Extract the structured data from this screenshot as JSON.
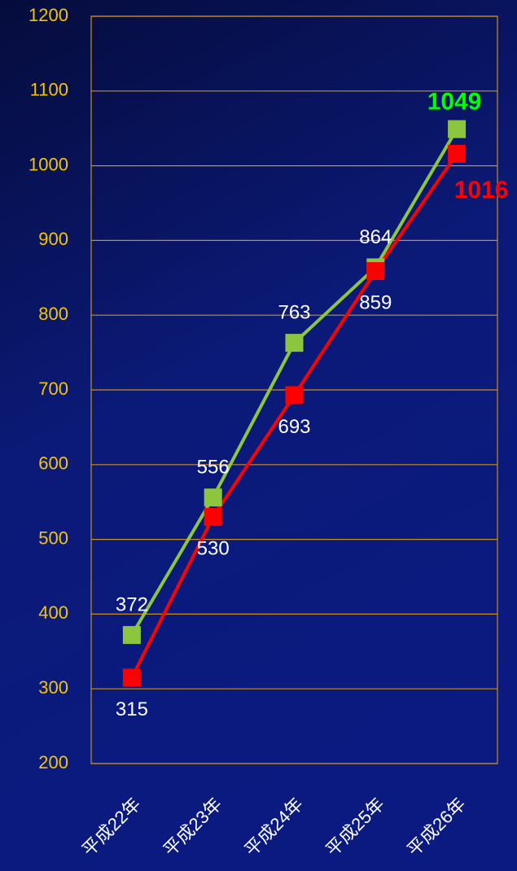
{
  "chart_data": {
    "type": "line",
    "categories": [
      "平成22年",
      "平成23年",
      "平成24年",
      "平成25年",
      "平成26年"
    ],
    "series": [
      {
        "name": null,
        "color": "#8cc63f",
        "values": [
          372,
          556,
          763,
          864,
          1049
        ]
      },
      {
        "name": null,
        "color": "#ff0000",
        "values": [
          315,
          530,
          693,
          859,
          1016
        ]
      }
    ],
    "ylim": [
      200,
      1200
    ],
    "yticks": [
      200,
      300,
      400,
      500,
      600,
      700,
      800,
      900,
      1000,
      1100,
      1200
    ],
    "grid": true
  }
}
